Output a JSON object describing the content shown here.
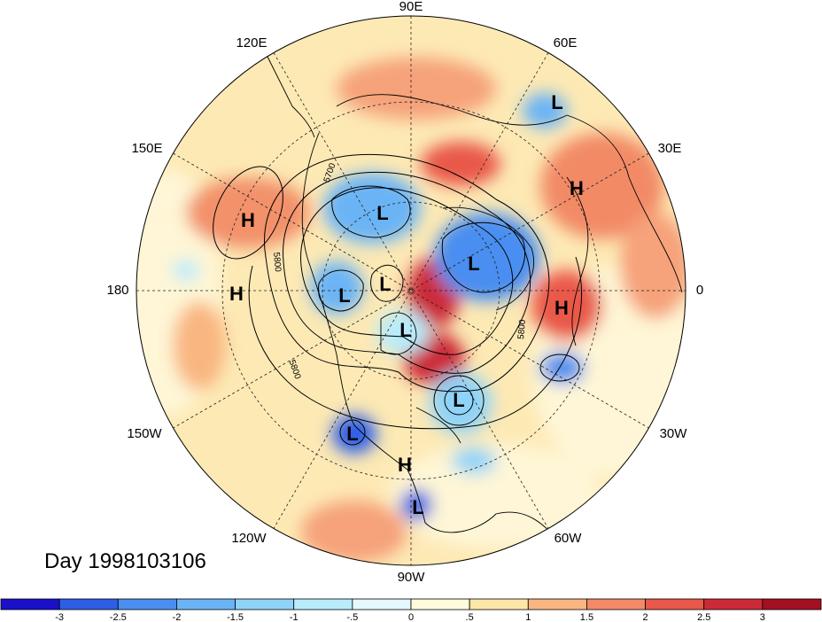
{
  "title": "Day 1998103106",
  "longitude_labels": [
    "90E",
    "60E",
    "30E",
    "0",
    "30W",
    "60W",
    "90W",
    "120W",
    "150W",
    "180",
    "150E",
    "120E"
  ],
  "contour_labels": [
    "5700",
    "5800",
    "5800",
    "5800"
  ],
  "pressure_centers": [
    {
      "type": "L",
      "label": "L"
    },
    {
      "type": "L",
      "label": "L"
    },
    {
      "type": "L",
      "label": "L"
    },
    {
      "type": "L",
      "label": "L"
    },
    {
      "type": "L",
      "label": "L"
    },
    {
      "type": "L",
      "label": "L"
    },
    {
      "type": "L",
      "label": "L"
    },
    {
      "type": "L",
      "label": "L"
    },
    {
      "type": "L",
      "label": "L"
    },
    {
      "type": "H",
      "label": "H"
    },
    {
      "type": "H",
      "label": "H"
    },
    {
      "type": "H",
      "label": "H"
    },
    {
      "type": "H",
      "label": "H"
    },
    {
      "type": "H",
      "label": "H"
    }
  ],
  "colorbar": {
    "colors": [
      "#1a10c8",
      "#2d5ee6",
      "#4a8ef0",
      "#6ab4f5",
      "#8fd3f8",
      "#b8ecfb",
      "#e4f8fd",
      "#fefadb",
      "#fde7a6",
      "#f9b681",
      "#f28a66",
      "#e9584a",
      "#cc2a38",
      "#a50f22"
    ],
    "tick_labels": [
      "-3",
      "-2.5",
      "-2",
      "-1.5",
      "-1",
      "-.5",
      "0",
      ".5",
      "1",
      "1.5",
      "2",
      "2.5",
      "3"
    ]
  },
  "colors": {
    "background": "#ffffff",
    "land_outline": "#000000",
    "contour": "#000000"
  }
}
